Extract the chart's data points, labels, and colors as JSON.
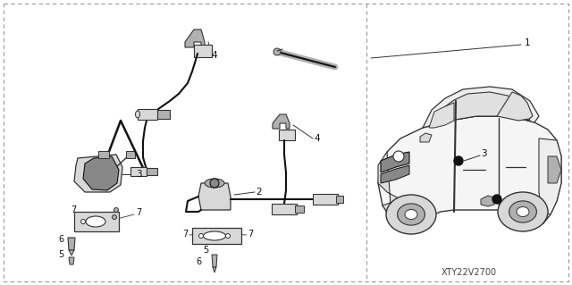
{
  "bg_color": "#ffffff",
  "line_color": "#333333",
  "dark_color": "#111111",
  "gray1": "#d8d8d8",
  "gray2": "#b0b0b0",
  "gray3": "#888888",
  "diagram_code": "XTY22V2700",
  "label_fontsize": 7.5,
  "code_fontsize": 7,
  "dash_color": "#999999",
  "dpi": 100,
  "figw": 6.4,
  "figh": 3.19
}
